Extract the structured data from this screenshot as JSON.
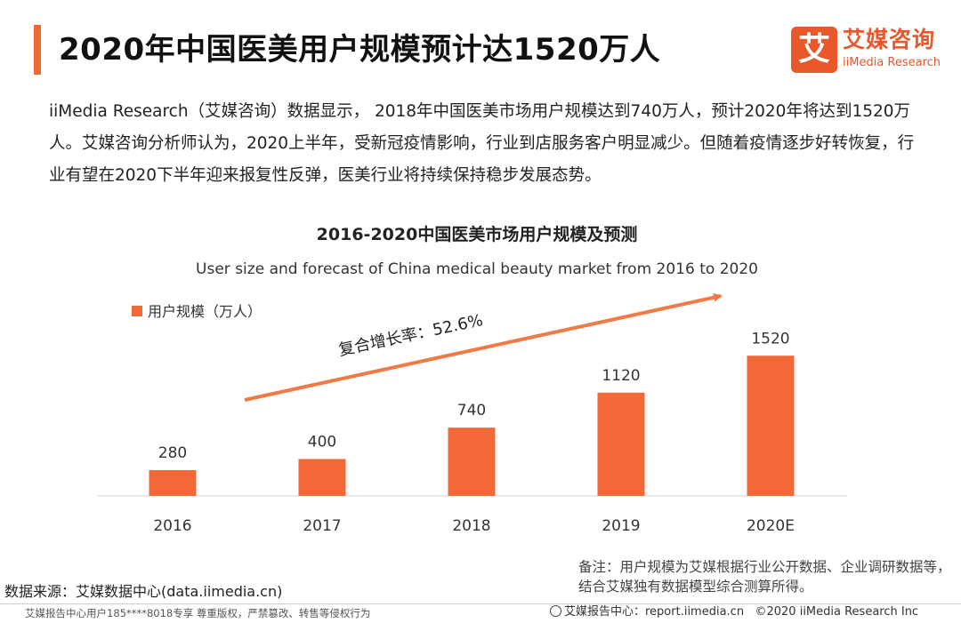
{
  "header": {
    "title": "2020年中国医美用户规模预计达1520万人",
    "logo_mark": "艾",
    "logo_cn": "艾媒咨询",
    "logo_en": "iiMedia Research"
  },
  "intro": {
    "paragraph": "iiMedia Research（艾媒咨询）数据显示， 2018年中国医美市场用户规模达到740万人，预计2020年将达到1520万人。艾媒咨询分析师认为，2020上半年，受新冠疫情影响，行业到店服务客户明显减少。但随着疫情逐步好转恢复，行业有望在2020下半年迎来报复性反弹，医美行业将持续保持稳步发展态势。"
  },
  "chart_data": {
    "type": "bar",
    "title": "2016-2020中国医美市场用户规模及预测",
    "subtitle": "User size and forecast of China medical beauty market from 2016 to 2020",
    "legend": "用户规模（万人）",
    "legend_position": "top-left",
    "categories": [
      "2016",
      "2017",
      "2018",
      "2019",
      "2020E"
    ],
    "series": [
      {
        "name": "用户规模（万人）",
        "values": [
          280,
          400,
          740,
          1120,
          1520
        ]
      }
    ],
    "annotation": "复合增长率：52.6%",
    "ylim": [
      0,
      2650
    ],
    "grid": false,
    "bar_color": "#f26836",
    "arrow_color": "#f07a45"
  },
  "footer": {
    "note": "备注：用户规模为艾媒根据行业公开数据、企业调研数据等，结合艾媒独有数据模型综合测算所得。",
    "source": "数据来源：艾媒数据中心(data.iimedia.cn)",
    "copyright": "艾媒报告中心用户185****8018专享 尊重版权，严禁篡改、转售等侵权行为",
    "report_center": "艾媒报告中心：report.iimedia.cn",
    "rights": "©2020 iiMedia Research Inc"
  }
}
